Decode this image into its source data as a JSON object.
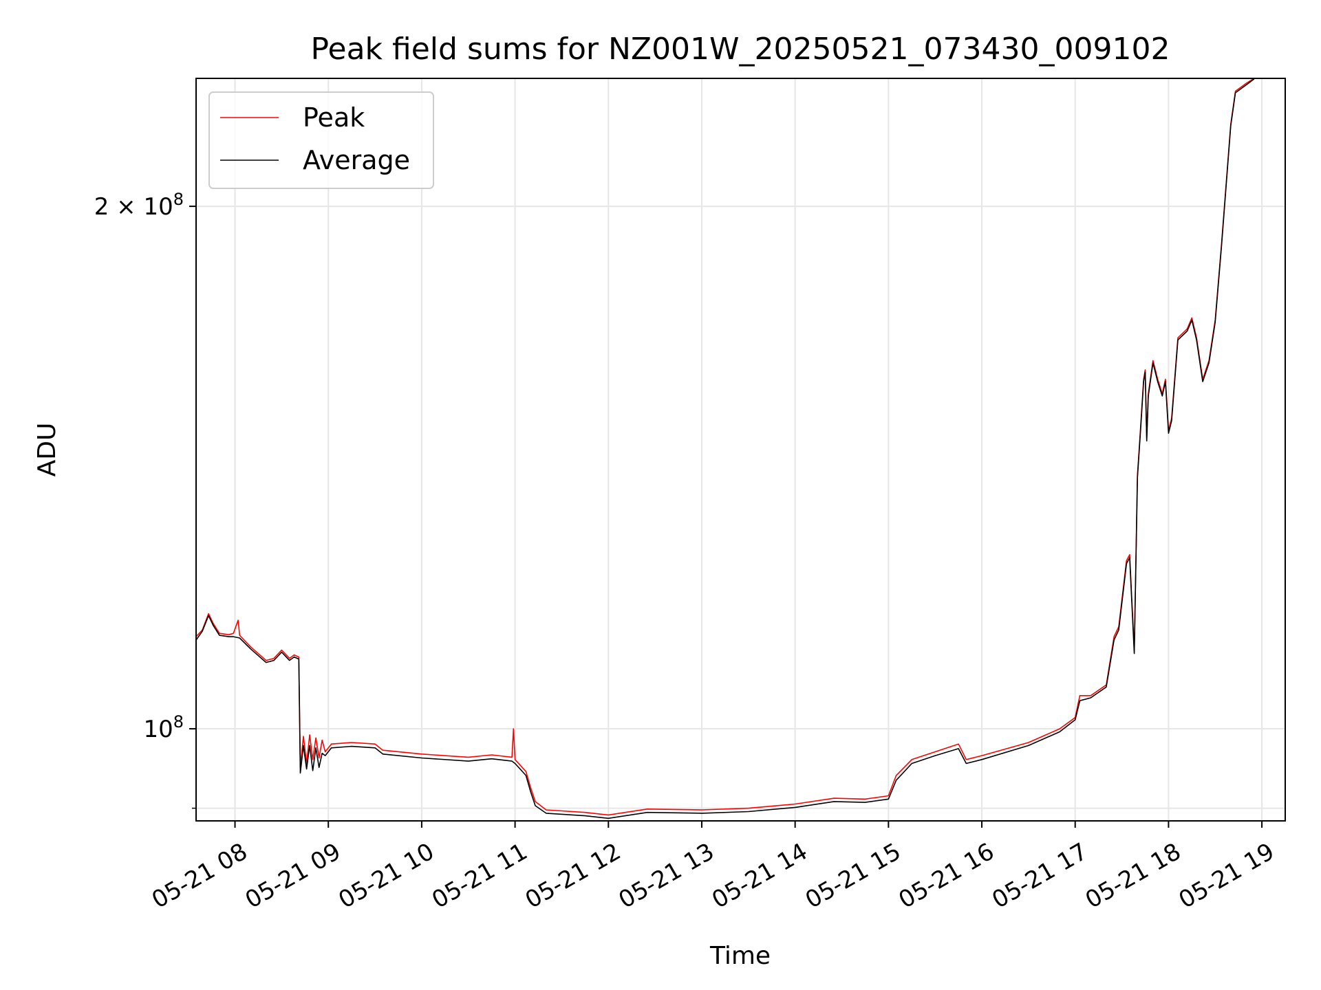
{
  "chart_data": {
    "type": "line",
    "title": "Peak field sums for NZ001W_20250521_073430_009102",
    "xlabel": "Time",
    "ylabel": "ADU",
    "y_scale": "log",
    "grid": true,
    "legend_position": "top-left",
    "xlim": [
      "2025-05-21 07:35",
      "2025-05-21 19:15"
    ],
    "ylim": [
      88500000,
      237000000
    ],
    "x_ticks": [
      {
        "value": "2025-05-21 08:00",
        "label": "05-21 08"
      },
      {
        "value": "2025-05-21 09:00",
        "label": "05-21 09"
      },
      {
        "value": "2025-05-21 10:00",
        "label": "05-21 10"
      },
      {
        "value": "2025-05-21 11:00",
        "label": "05-21 11"
      },
      {
        "value": "2025-05-21 12:00",
        "label": "05-21 12"
      },
      {
        "value": "2025-05-21 13:00",
        "label": "05-21 13"
      },
      {
        "value": "2025-05-21 14:00",
        "label": "05-21 14"
      },
      {
        "value": "2025-05-21 15:00",
        "label": "05-21 15"
      },
      {
        "value": "2025-05-21 16:00",
        "label": "05-21 16"
      },
      {
        "value": "2025-05-21 17:00",
        "label": "05-21 17"
      },
      {
        "value": "2025-05-21 18:00",
        "label": "05-21 18"
      },
      {
        "value": "2025-05-21 19:00",
        "label": "05-21 19"
      }
    ],
    "y_ticks": [
      {
        "value": 100000000,
        "base": "10",
        "exp": "8",
        "coef": ""
      },
      {
        "value": 200000000,
        "base": "10",
        "exp": "8",
        "coef": "2 × "
      }
    ],
    "y_minor_ticks": [
      90000000
    ],
    "series": [
      {
        "name": "Peak",
        "color": "#ff0000",
        "points": [
          [
            "2025-05-21 07:35",
            113000000
          ],
          [
            "2025-05-21 07:39",
            114000000
          ],
          [
            "2025-05-21 07:43",
            116500000
          ],
          [
            "2025-05-21 07:46",
            115000000
          ],
          [
            "2025-05-21 07:50",
            113500000
          ],
          [
            "2025-05-21 07:56",
            113300000
          ],
          [
            "2025-05-21 07:59",
            113500000
          ],
          [
            "2025-05-21 08:02",
            115500000
          ],
          [
            "2025-05-21 08:03",
            113200000
          ],
          [
            "2025-05-21 08:10",
            111500000
          ],
          [
            "2025-05-21 08:20",
            109500000
          ],
          [
            "2025-05-21 08:25",
            109800000
          ],
          [
            "2025-05-21 08:30",
            111000000
          ],
          [
            "2025-05-21 08:35",
            109800000
          ],
          [
            "2025-05-21 08:38",
            110300000
          ],
          [
            "2025-05-21 08:41",
            110000000
          ],
          [
            "2025-05-21 08:42",
            95000000
          ],
          [
            "2025-05-21 08:44",
            99000000
          ],
          [
            "2025-05-21 08:46",
            95500000
          ],
          [
            "2025-05-21 08:48",
            99200000
          ],
          [
            "2025-05-21 08:50",
            96000000
          ],
          [
            "2025-05-21 08:52",
            98800000
          ],
          [
            "2025-05-21 08:54",
            96200000
          ],
          [
            "2025-05-21 08:56",
            98500000
          ],
          [
            "2025-05-21 08:58",
            97000000
          ],
          [
            "2025-05-21 09:02",
            98000000
          ],
          [
            "2025-05-21 09:15",
            98200000
          ],
          [
            "2025-05-21 09:30",
            98000000
          ],
          [
            "2025-05-21 09:35",
            97200000
          ],
          [
            "2025-05-21 10:00",
            96700000
          ],
          [
            "2025-05-21 10:30",
            96300000
          ],
          [
            "2025-05-21 10:45",
            96600000
          ],
          [
            "2025-05-21 10:58",
            96300000
          ],
          [
            "2025-05-21 10:59",
            100000000
          ],
          [
            "2025-05-21 11:00",
            96000000
          ],
          [
            "2025-05-21 11:07",
            94500000
          ],
          [
            "2025-05-21 11:10",
            92500000
          ],
          [
            "2025-05-21 11:13",
            90800000
          ],
          [
            "2025-05-21 11:20",
            89800000
          ],
          [
            "2025-05-21 11:45",
            89500000
          ],
          [
            "2025-05-21 12:00",
            89200000
          ],
          [
            "2025-05-21 12:25",
            89900000
          ],
          [
            "2025-05-21 13:00",
            89800000
          ],
          [
            "2025-05-21 13:30",
            90000000
          ],
          [
            "2025-05-21 14:00",
            90500000
          ],
          [
            "2025-05-21 14:25",
            91200000
          ],
          [
            "2025-05-21 14:45",
            91100000
          ],
          [
            "2025-05-21 15:00",
            91500000
          ],
          [
            "2025-05-21 15:05",
            94000000
          ],
          [
            "2025-05-21 15:15",
            96000000
          ],
          [
            "2025-05-21 15:30",
            97000000
          ],
          [
            "2025-05-21 15:45",
            98000000
          ],
          [
            "2025-05-21 15:50",
            96000000
          ],
          [
            "2025-05-21 16:00",
            96500000
          ],
          [
            "2025-05-21 16:30",
            98200000
          ],
          [
            "2025-05-21 16:50",
            100000000
          ],
          [
            "2025-05-21 17:00",
            101500000
          ],
          [
            "2025-05-21 17:03",
            104500000
          ],
          [
            "2025-05-21 17:10",
            104500000
          ],
          [
            "2025-05-21 17:20",
            106000000
          ],
          [
            "2025-05-21 17:25",
            113000000
          ],
          [
            "2025-05-21 17:28",
            114500000
          ],
          [
            "2025-05-21 17:33",
            125000000
          ],
          [
            "2025-05-21 17:35",
            126000000
          ],
          [
            "2025-05-21 17:38",
            111000000
          ],
          [
            "2025-05-21 17:40",
            140000000
          ],
          [
            "2025-05-21 17:42",
            149000000
          ],
          [
            "2025-05-21 17:44",
            159000000
          ],
          [
            "2025-05-21 17:45",
            161000000
          ],
          [
            "2025-05-21 17:46",
            147000000
          ],
          [
            "2025-05-21 17:47",
            156000000
          ],
          [
            "2025-05-21 17:50",
            163000000
          ],
          [
            "2025-05-21 17:53",
            159000000
          ],
          [
            "2025-05-21 17:56",
            156000000
          ],
          [
            "2025-05-21 17:58",
            159000000
          ],
          [
            "2025-05-21 18:00",
            148500000
          ],
          [
            "2025-05-21 18:02",
            151000000
          ],
          [
            "2025-05-21 18:06",
            168000000
          ],
          [
            "2025-05-21 18:12",
            170000000
          ],
          [
            "2025-05-21 18:15",
            172500000
          ],
          [
            "2025-05-21 18:18",
            168000000
          ],
          [
            "2025-05-21 18:22",
            159000000
          ],
          [
            "2025-05-21 18:26",
            163000000
          ],
          [
            "2025-05-21 18:30",
            172000000
          ],
          [
            "2025-05-21 18:34",
            190000000
          ],
          [
            "2025-05-21 18:40",
            223000000
          ],
          [
            "2025-05-21 18:43",
            233000000
          ],
          [
            "2025-05-21 18:50",
            235500000
          ],
          [
            "2025-05-21 18:55",
            237000000
          ]
        ]
      },
      {
        "name": "Average",
        "color": "#000000",
        "points": [
          [
            "2025-05-21 07:35",
            112500000
          ],
          [
            "2025-05-21 07:39",
            113800000
          ],
          [
            "2025-05-21 07:43",
            116200000
          ],
          [
            "2025-05-21 07:46",
            114700000
          ],
          [
            "2025-05-21 07:50",
            113200000
          ],
          [
            "2025-05-21 07:56",
            113000000
          ],
          [
            "2025-05-21 07:59",
            113000000
          ],
          [
            "2025-05-21 08:03",
            112800000
          ],
          [
            "2025-05-21 08:10",
            111200000
          ],
          [
            "2025-05-21 08:20",
            109200000
          ],
          [
            "2025-05-21 08:25",
            109500000
          ],
          [
            "2025-05-21 08:30",
            110700000
          ],
          [
            "2025-05-21 08:35",
            109500000
          ],
          [
            "2025-05-21 08:38",
            110000000
          ],
          [
            "2025-05-21 08:41",
            109700000
          ],
          [
            "2025-05-21 08:42",
            94300000
          ],
          [
            "2025-05-21 08:44",
            97800000
          ],
          [
            "2025-05-21 08:46",
            94800000
          ],
          [
            "2025-05-21 08:48",
            97800000
          ],
          [
            "2025-05-21 08:50",
            94600000
          ],
          [
            "2025-05-21 08:52",
            97500000
          ],
          [
            "2025-05-21 08:54",
            95000000
          ],
          [
            "2025-05-21 08:56",
            96800000
          ],
          [
            "2025-05-21 08:58",
            96500000
          ],
          [
            "2025-05-21 09:02",
            97500000
          ],
          [
            "2025-05-21 09:15",
            97700000
          ],
          [
            "2025-05-21 09:30",
            97500000
          ],
          [
            "2025-05-21 09:35",
            96700000
          ],
          [
            "2025-05-21 10:00",
            96200000
          ],
          [
            "2025-05-21 10:30",
            95800000
          ],
          [
            "2025-05-21 10:45",
            96100000
          ],
          [
            "2025-05-21 10:58",
            95800000
          ],
          [
            "2025-05-21 11:00",
            95500000
          ],
          [
            "2025-05-21 11:07",
            94000000
          ],
          [
            "2025-05-21 11:10",
            92000000
          ],
          [
            "2025-05-21 11:13",
            90300000
          ],
          [
            "2025-05-21 11:20",
            89400000
          ],
          [
            "2025-05-21 11:45",
            89100000
          ],
          [
            "2025-05-21 12:00",
            88800000
          ],
          [
            "2025-05-21 12:25",
            89500000
          ],
          [
            "2025-05-21 13:00",
            89400000
          ],
          [
            "2025-05-21 13:30",
            89600000
          ],
          [
            "2025-05-21 14:00",
            90100000
          ],
          [
            "2025-05-21 14:25",
            90800000
          ],
          [
            "2025-05-21 14:45",
            90700000
          ],
          [
            "2025-05-21 15:00",
            91100000
          ],
          [
            "2025-05-21 15:05",
            93400000
          ],
          [
            "2025-05-21 15:15",
            95500000
          ],
          [
            "2025-05-21 15:30",
            96500000
          ],
          [
            "2025-05-21 15:45",
            97400000
          ],
          [
            "2025-05-21 15:50",
            95500000
          ],
          [
            "2025-05-21 16:00",
            96000000
          ],
          [
            "2025-05-21 16:30",
            97800000
          ],
          [
            "2025-05-21 16:50",
            99600000
          ],
          [
            "2025-05-21 17:00",
            101200000
          ],
          [
            "2025-05-21 17:03",
            103800000
          ],
          [
            "2025-05-21 17:10",
            104200000
          ],
          [
            "2025-05-21 17:20",
            105700000
          ],
          [
            "2025-05-21 17:25",
            112500000
          ],
          [
            "2025-05-21 17:28",
            114000000
          ],
          [
            "2025-05-21 17:33",
            124500000
          ],
          [
            "2025-05-21 17:35",
            125500000
          ],
          [
            "2025-05-21 17:38",
            110500000
          ],
          [
            "2025-05-21 17:40",
            139500000
          ],
          [
            "2025-05-21 17:42",
            148500000
          ],
          [
            "2025-05-21 17:44",
            158500000
          ],
          [
            "2025-05-21 17:45",
            160500000
          ],
          [
            "2025-05-21 17:46",
            146500000
          ],
          [
            "2025-05-21 17:47",
            155500000
          ],
          [
            "2025-05-21 17:50",
            162500000
          ],
          [
            "2025-05-21 17:53",
            158500000
          ],
          [
            "2025-05-21 17:56",
            155500000
          ],
          [
            "2025-05-21 17:58",
            158500000
          ],
          [
            "2025-05-21 18:00",
            148000000
          ],
          [
            "2025-05-21 18:02",
            150500000
          ],
          [
            "2025-05-21 18:06",
            167500000
          ],
          [
            "2025-05-21 18:12",
            169500000
          ],
          [
            "2025-05-21 18:15",
            172000000
          ],
          [
            "2025-05-21 18:18",
            167500000
          ],
          [
            "2025-05-21 18:22",
            158500000
          ],
          [
            "2025-05-21 18:26",
            162500000
          ],
          [
            "2025-05-21 18:30",
            171500000
          ],
          [
            "2025-05-21 18:34",
            189500000
          ],
          [
            "2025-05-21 18:40",
            222500000
          ],
          [
            "2025-05-21 18:43",
            232500000
          ],
          [
            "2025-05-21 18:50",
            235000000
          ],
          [
            "2025-05-21 18:55",
            236800000
          ]
        ]
      }
    ]
  }
}
